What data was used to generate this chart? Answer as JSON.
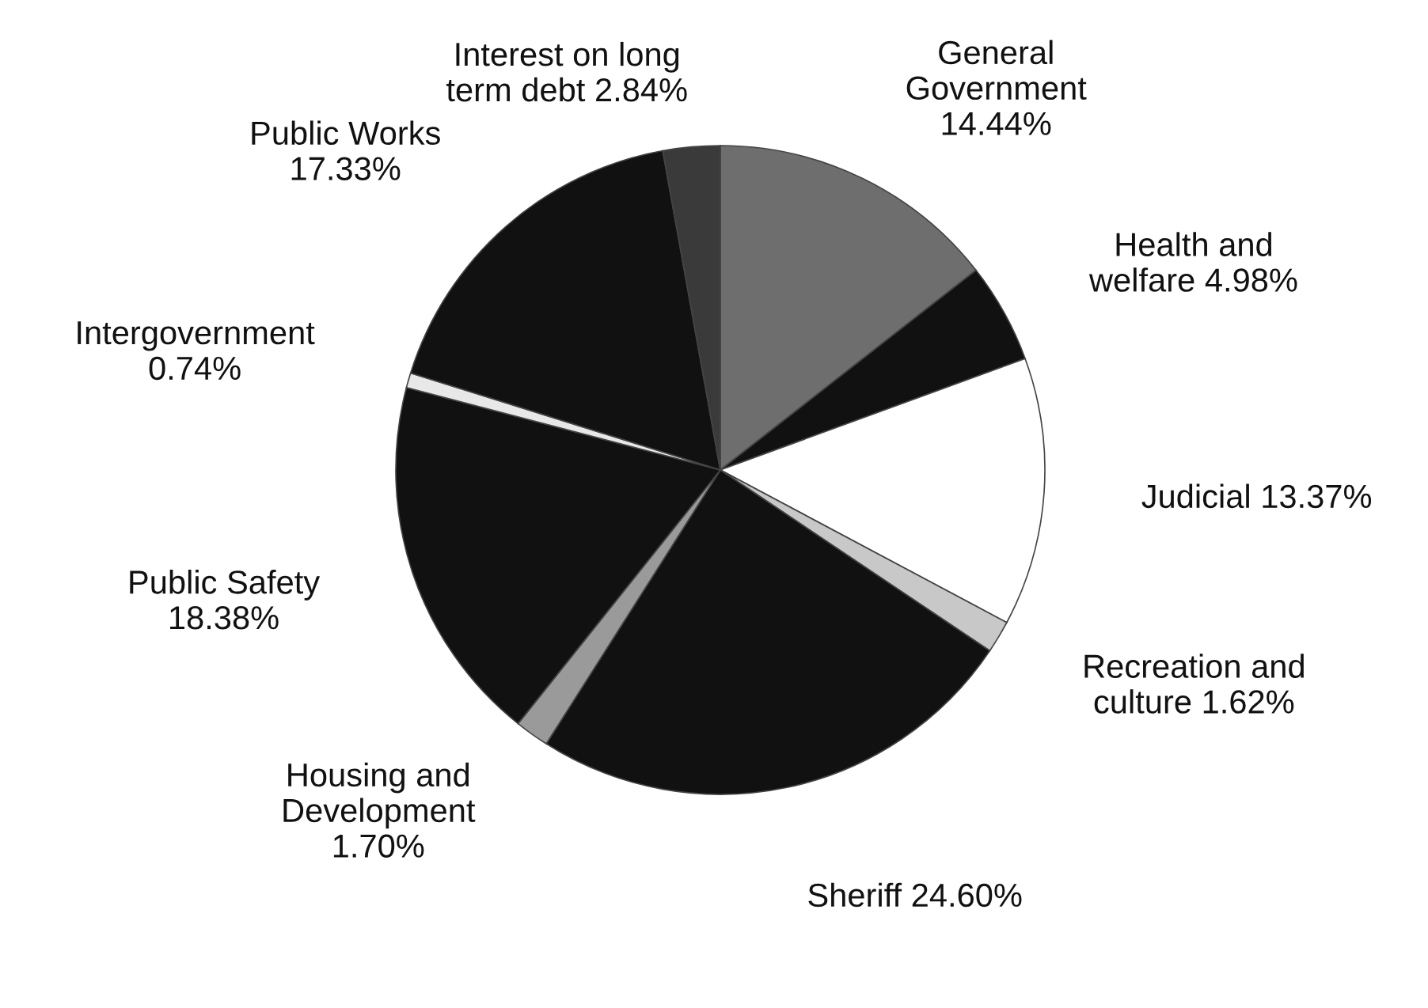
{
  "chart_data": {
    "type": "pie",
    "categories": [
      "General\nGovernment",
      "Health and\nwelfare",
      "Judicial",
      "Recreation and\nculture",
      "Sheriff",
      "Housing and\nDevelopment",
      "Public Safety",
      "Intergovernment",
      "Public Works",
      "Interest on long\nterm debt"
    ],
    "value_labels": [
      "14.44%",
      "4.98%",
      "13.37%",
      "1.62%",
      "24.60%",
      "1.70%",
      "18.38%",
      "0.74%",
      "17.33%",
      "2.84%"
    ],
    "values": [
      14.44,
      4.98,
      13.37,
      1.62,
      24.6,
      1.7,
      18.38,
      0.74,
      17.33,
      2.84
    ],
    "colors": [
      "#6e6e6e",
      "#111111",
      "#ffffff",
      "#c8c8c8",
      "#111111",
      "#9a9a9a",
      "#111111",
      "#e8e8e8",
      "#111111",
      "#3a3a3a"
    ]
  }
}
